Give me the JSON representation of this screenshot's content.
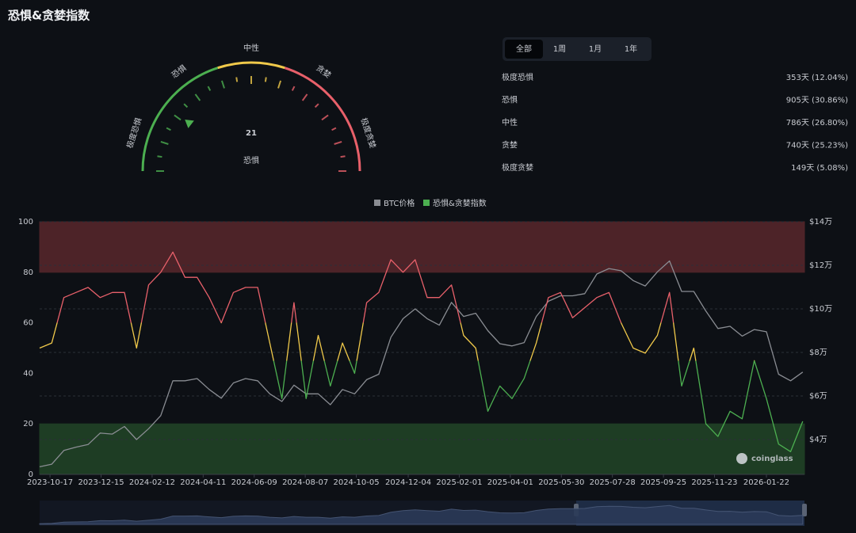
{
  "title": "恐惧&贪婪指数",
  "gauge": {
    "value": 21,
    "label": "恐惧",
    "scale": [
      0,
      100
    ],
    "zone_labels": [
      "极度恐惧",
      "恐惧",
      "中性",
      "贪婪",
      "极度贪婪"
    ],
    "zones": [
      {
        "to": 40,
        "color": "#4caf50"
      },
      {
        "to": 60,
        "color": "#f0c94a"
      },
      {
        "to": 100,
        "color": "#e8606a"
      }
    ]
  },
  "tabs": {
    "items": [
      "全部",
      "1周",
      "1月",
      "1年"
    ],
    "active": 0
  },
  "stats": [
    {
      "label": "极度恐惧",
      "value": "353天 (12.04%)"
    },
    {
      "label": "恐惧",
      "value": "905天 (30.86%)"
    },
    {
      "label": "中性",
      "value": "786天 (26.80%)"
    },
    {
      "label": "贪婪",
      "value": "740天 (25.23%)"
    },
    {
      "label": "极度贪婪",
      "value": "149天 (5.08%)"
    }
  ],
  "chart_data": {
    "type": "line",
    "x": [
      "2023-10-05",
      "2023-10-19",
      "2023-11-02",
      "2023-11-16",
      "2023-11-30",
      "2023-12-14",
      "2023-12-28",
      "2024-01-11",
      "2024-01-25",
      "2024-02-08",
      "2024-02-22",
      "2024-03-07",
      "2024-03-21",
      "2024-04-04",
      "2024-04-18",
      "2024-05-02",
      "2024-05-16",
      "2024-05-30",
      "2024-06-13",
      "2024-06-27",
      "2024-07-11",
      "2024-07-25",
      "2024-08-08",
      "2024-08-22",
      "2024-09-05",
      "2024-09-19",
      "2024-10-03",
      "2024-10-17",
      "2024-10-31",
      "2024-11-14",
      "2024-11-28",
      "2024-12-12",
      "2024-12-26",
      "2025-01-09",
      "2025-01-23",
      "2025-02-06",
      "2025-02-20",
      "2025-03-06",
      "2025-03-20",
      "2025-04-03",
      "2025-04-17",
      "2025-05-01",
      "2025-05-15",
      "2025-05-29",
      "2025-06-12",
      "2025-06-26",
      "2025-07-10",
      "2025-07-24",
      "2025-08-07",
      "2025-08-21",
      "2025-09-04",
      "2025-09-18",
      "2025-10-02",
      "2025-10-16",
      "2025-10-30",
      "2025-11-13",
      "2025-11-27",
      "2025-12-11",
      "2025-12-25",
      "2026-01-08",
      "2026-01-22",
      "2026-02-05",
      "2026-02-19",
      "2026-03-05"
    ],
    "series": [
      {
        "name": "BTC价格",
        "color": "#8a8d93",
        "axis": "y2",
        "values": [
          27500,
          28700,
          35000,
          36500,
          37700,
          43000,
          42500,
          46000,
          40000,
          45000,
          51000,
          67000,
          67000,
          68000,
          63000,
          59000,
          66000,
          68000,
          67000,
          61000,
          57500,
          65000,
          61000,
          61000,
          56000,
          63000,
          61000,
          67500,
          70000,
          87000,
          95500,
          100000,
          95500,
          92500,
          103000,
          96500,
          98000,
          90000,
          84000,
          83000,
          84500,
          96500,
          103500,
          106000,
          106000,
          107000,
          116000,
          118500,
          117500,
          113000,
          110500,
          117000,
          122000,
          108000,
          108000,
          99000,
          91000,
          92000,
          87500,
          90500,
          89500,
          70000,
          67000,
          71000
        ]
      },
      {
        "name": "恐惧&贪婪指数",
        "color": "#4caf50",
        "color_thresholds": [
          45,
          60
        ],
        "colors": [
          "#4caf50",
          "#f0c94a",
          "#e8606a"
        ],
        "values": [
          50,
          52,
          70,
          72,
          74,
          70,
          72,
          72,
          50,
          75,
          80,
          88,
          78,
          78,
          70,
          60,
          72,
          74,
          74,
          52,
          30,
          68,
          30,
          55,
          35,
          52,
          40,
          68,
          72,
          85,
          80,
          85,
          70,
          70,
          75,
          55,
          50,
          25,
          35,
          30,
          38,
          52,
          70,
          72,
          62,
          66,
          70,
          72,
          60,
          50,
          48,
          55,
          72,
          35,
          50,
          20,
          15,
          25,
          22,
          45,
          30,
          12,
          9,
          21
        ]
      }
    ],
    "xlim": [
      "2023-10-05",
      "2026-03-07"
    ],
    "xticks": [
      "2023-10-17",
      "2023-12-15",
      "2024-02-12",
      "2024-04-11",
      "2024-06-09",
      "2024-08-07",
      "2024-10-05",
      "2024-12-04",
      "2025-02-01",
      "2025-04-01",
      "2025-05-30",
      "2025-07-28",
      "2025-09-25",
      "2025-11-23",
      "2026-01-22"
    ],
    "ylim": [
      0,
      100
    ],
    "yticks": [
      0,
      20,
      40,
      60,
      80,
      100
    ],
    "y2lim": [
      24000,
      140000
    ],
    "y2ticks": [
      {
        "value": 40000,
        "label": "$4万"
      },
      {
        "value": 60000,
        "label": "$6万"
      },
      {
        "value": 80000,
        "label": "$8万"
      },
      {
        "value": 100000,
        "label": "$10万"
      },
      {
        "value": 120000,
        "label": "$12万"
      },
      {
        "value": 140000,
        "label": "$14万"
      }
    ],
    "bands": [
      {
        "from": 80,
        "to": 100,
        "color": "#4d2328"
      },
      {
        "from": 0,
        "to": 20,
        "color": "#1e3d24"
      }
    ],
    "grid": true
  },
  "watermark": "coinglass"
}
